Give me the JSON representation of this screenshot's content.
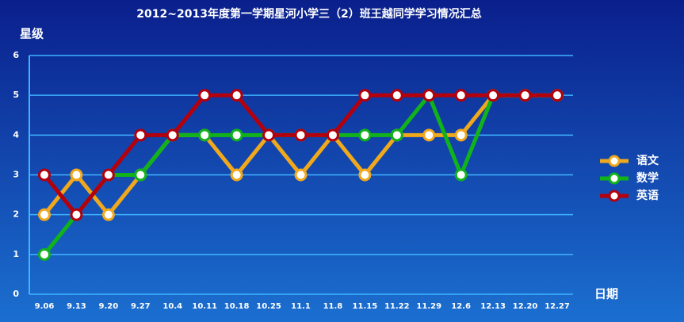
{
  "chart_data": {
    "type": "line",
    "title": "2012~2013年度第一学期星河小学三（2）班王越同学学习情况汇总",
    "y_label": "星级",
    "x_label": "日期",
    "categories": [
      "9.06",
      "9.13",
      "9.20",
      "9.27",
      "10.4",
      "10.11",
      "10.18",
      "10.25",
      "11.1",
      "11.8",
      "11.15",
      "11.22",
      "11.29",
      "12.6",
      "12.13",
      "12.20",
      "12.27"
    ],
    "series": [
      {
        "name": "语文",
        "color": "#f0a81c",
        "values": [
          2,
          3,
          2,
          3,
          4,
          4,
          3,
          4,
          3,
          4,
          3,
          4,
          4,
          4,
          5,
          5,
          5
        ]
      },
      {
        "name": "数学",
        "color": "#12b31a",
        "values": [
          1,
          2,
          3,
          3,
          4,
          4,
          4,
          4,
          4,
          4,
          4,
          4,
          5,
          3,
          5,
          5,
          5
        ]
      },
      {
        "name": "英语",
        "color": "#b3000c",
        "values": [
          3,
          2,
          3,
          4,
          4,
          5,
          5,
          4,
          4,
          4,
          5,
          5,
          5,
          5,
          5,
          5,
          5
        ]
      }
    ],
    "ylim": [
      0,
      6
    ],
    "yticks": [
      0,
      1,
      2,
      3,
      4,
      5,
      6
    ],
    "grid": true
  }
}
